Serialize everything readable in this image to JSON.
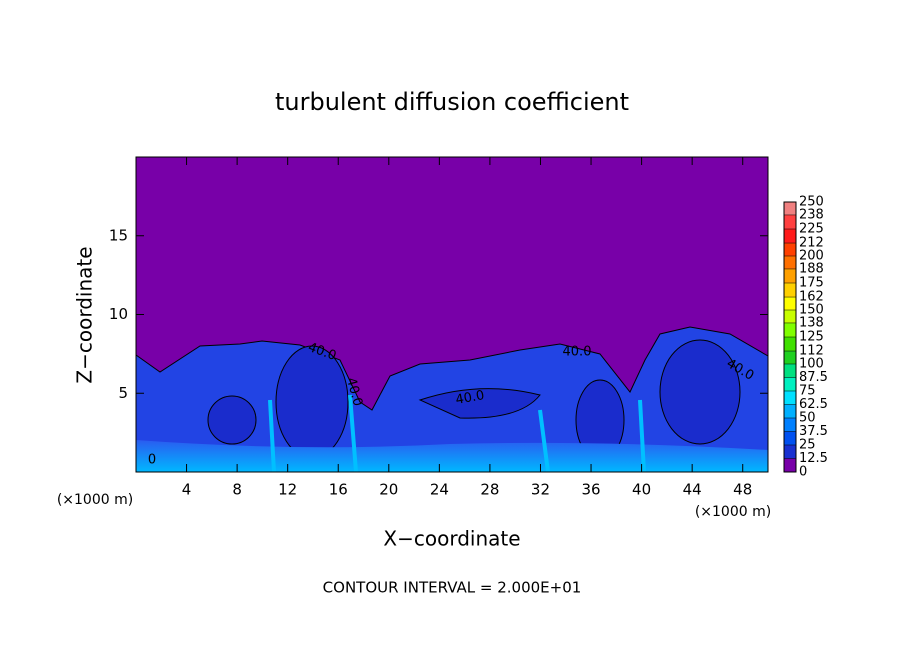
{
  "chart_data": {
    "type": "heatmap",
    "title": "turbulent diffusion coefficient",
    "xlabel": "X−coordinate",
    "ylabel": "Z−coordinate",
    "x_unit": "(×1000 m)",
    "x_unit_right": "(×1000 m)",
    "footer": "CONTOUR INTERVAL = 2.000E+01",
    "xlim": [
      0,
      50
    ],
    "xticks": [
      4,
      8,
      12,
      16,
      20,
      24,
      28,
      32,
      36,
      40,
      44,
      48
    ],
    "ylim": [
      0,
      20
    ],
    "yticks": [
      5,
      10,
      15
    ],
    "contour_labels": [
      "40.0",
      "40.0",
      "40.0",
      "40.0",
      "40.0",
      "0"
    ],
    "colorbar": {
      "lim": [
        0,
        250
      ],
      "ticks": [
        250,
        238,
        225,
        212,
        200,
        188,
        175,
        162,
        150,
        138,
        125,
        112,
        100,
        87.5,
        75,
        62.5,
        50,
        37.5,
        25,
        12.5,
        0
      ],
      "colors": [
        "#f08080",
        "#ff4040",
        "#ff1a1a",
        "#ff4000",
        "#ff7000",
        "#ffa000",
        "#ffd000",
        "#ffff00",
        "#c8ff00",
        "#80ff00",
        "#40e000",
        "#20d020",
        "#00e080",
        "#00f0c0",
        "#00e0ff",
        "#00b0ff",
        "#0080ff",
        "#0050f0",
        "#1830d0",
        "#7800a8"
      ]
    }
  }
}
